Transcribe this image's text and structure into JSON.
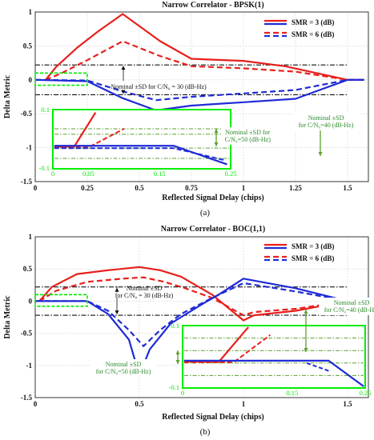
{
  "colors": {
    "red": "#e8201c",
    "blue": "#1f2bd6",
    "green": "#00ee00",
    "olive": "#5aa02c",
    "black": "#111111"
  },
  "chart_data": [
    {
      "panel_label": "(a)",
      "type": "line",
      "title": "Narrow Correlator - BPSK(1)",
      "xlabel": "Reflected Signal Delay (chips)",
      "ylabel": "Delta Metric",
      "xlim": [
        0,
        1.6
      ],
      "ylim": [
        -1.5,
        1
      ],
      "xticks": [
        "0",
        "0.25",
        "0.5",
        "0.75",
        "1",
        "1.25",
        "1.5"
      ],
      "yticks": [
        "1",
        "0.5",
        "0",
        "-0.5",
        "-1",
        "-1.5"
      ],
      "grid": true,
      "legend": {
        "position": "top-right",
        "entries": [
          {
            "label": "SMR = 3 (dB)",
            "style": "solid"
          },
          {
            "label": "SMR = 6 (dB)",
            "style": "dashed"
          }
        ]
      },
      "series": [
        {
          "name": "SMR = 3 (dB)",
          "color": "red",
          "style": "solid",
          "points": [
            [
              0.05,
              0
            ],
            [
              0.1,
              0.19
            ],
            [
              0.2,
              0.47
            ],
            [
              0.3,
              0.71
            ],
            [
              0.42,
              0.97
            ],
            [
              0.6,
              0.57
            ],
            [
              0.75,
              0.31
            ],
            [
              1.0,
              0.28
            ],
            [
              1.2,
              0.2
            ],
            [
              1.5,
              0
            ],
            [
              1.58,
              0
            ]
          ]
        },
        {
          "name": "SMR = 6 (dB)",
          "color": "red",
          "style": "dashed",
          "points": [
            [
              0.05,
              0
            ],
            [
              0.12,
              0.09
            ],
            [
              0.25,
              0.29
            ],
            [
              0.42,
              0.57
            ],
            [
              0.6,
              0.35
            ],
            [
              0.75,
              0.2
            ],
            [
              1.0,
              0.17
            ],
            [
              1.25,
              0.12
            ],
            [
              1.5,
              0
            ],
            [
              1.58,
              0
            ]
          ]
        },
        {
          "name": "SMR = 3 (dB)",
          "color": "blue",
          "style": "solid",
          "points": [
            [
              0,
              0
            ],
            [
              0.25,
              -0.02
            ],
            [
              0.42,
              -0.27
            ],
            [
              0.58,
              -0.45
            ],
            [
              0.75,
              -0.38
            ],
            [
              1.0,
              -0.33
            ],
            [
              1.25,
              -0.28
            ],
            [
              1.5,
              0
            ],
            [
              1.58,
              0
            ]
          ]
        },
        {
          "name": "SMR = 6 (dB)",
          "color": "blue",
          "style": "dashed",
          "points": [
            [
              0,
              0
            ],
            [
              0.25,
              -0.01
            ],
            [
              0.42,
              -0.17
            ],
            [
              0.58,
              -0.3
            ],
            [
              0.75,
              -0.25
            ],
            [
              1.0,
              -0.2
            ],
            [
              1.25,
              -0.15
            ],
            [
              1.5,
              0
            ],
            [
              1.58,
              0
            ]
          ]
        }
      ],
      "reference_lines": [
        {
          "y": 0.22,
          "color": "black",
          "style": "dashdot"
        },
        {
          "y": -0.22,
          "color": "black",
          "style": "dashdot"
        }
      ],
      "annotation": "Nominal ±SD  for C/N₀ = 30 (dB-Hz)",
      "inset": {
        "xlim": [
          0,
          0.25
        ],
        "ylim": [
          -0.1,
          0.1
        ],
        "ticks_x": [
          "0",
          "0.05",
          "0.15",
          "0.25"
        ],
        "ticks_y": [
          "0.1",
          "-0.1"
        ],
        "band_lines": [
          0.035,
          0.017,
          -0.03,
          -0.065
        ],
        "notes": [
          "Nominal ±SD for\nC/N₀=50 (dB-Hz)",
          "Nominal ±SD\nfor C/N₀=40 (dB-Hz)"
        ]
      }
    },
    {
      "panel_label": "(b)",
      "type": "line",
      "title": "Narrow Correlator - BOC(1,1)",
      "xlabel": "Reflected Signal Delay (chips)",
      "ylabel": "Delta Metric",
      "xlim": [
        0,
        1.6
      ],
      "ylim": [
        -1.5,
        1
      ],
      "xticks": [
        "0",
        "0.5",
        "1",
        "1.5"
      ],
      "yticks": [
        "1",
        "0.5",
        "0",
        "-0.5",
        "-1",
        "-1.5"
      ],
      "grid": true,
      "legend": {
        "position": "top-right",
        "entries": [
          {
            "label": "SMR = 3 (dB)",
            "style": "solid"
          },
          {
            "label": "SMR = 6 (dB)",
            "style": "dashed"
          }
        ]
      },
      "series": [
        {
          "name": "SMR = 3 (dB)",
          "color": "red",
          "style": "solid",
          "points": [
            [
              0.02,
              0
            ],
            [
              0.08,
              0.22
            ],
            [
              0.2,
              0.42
            ],
            [
              0.35,
              0.48
            ],
            [
              0.5,
              0.53
            ],
            [
              0.6,
              0.48
            ],
            [
              0.7,
              0.38
            ],
            [
              0.85,
              0.1
            ],
            [
              1.0,
              -0.3
            ],
            [
              1.05,
              -0.22
            ],
            [
              1.25,
              -0.15
            ],
            [
              1.5,
              0
            ],
            [
              1.58,
              0
            ]
          ]
        },
        {
          "name": "SMR = 6 (dB)",
          "color": "red",
          "style": "dashed",
          "points": [
            [
              0.02,
              0
            ],
            [
              0.1,
              0.16
            ],
            [
              0.25,
              0.3
            ],
            [
              0.42,
              0.35
            ],
            [
              0.52,
              0.37
            ],
            [
              0.62,
              0.3
            ],
            [
              0.72,
              0.2
            ],
            [
              0.85,
              0.05
            ],
            [
              1.0,
              -0.22
            ],
            [
              1.05,
              -0.17
            ],
            [
              1.25,
              -0.12
            ],
            [
              1.5,
              0
            ],
            [
              1.58,
              0
            ]
          ]
        },
        {
          "name": "SMR = 3 (dB)",
          "color": "blue",
          "style": "solid",
          "points": [
            [
              0,
              0
            ],
            [
              0.25,
              0
            ],
            [
              0.35,
              -0.2
            ],
            [
              0.45,
              -0.6
            ],
            [
              0.5,
              -1.15
            ],
            [
              0.55,
              -0.75
            ],
            [
              0.65,
              -0.35
            ],
            [
              0.8,
              -0.05
            ],
            [
              0.88,
              0.1
            ],
            [
              1.0,
              0.35
            ],
            [
              1.25,
              0.2
            ],
            [
              1.5,
              0
            ],
            [
              1.58,
              0
            ]
          ]
        },
        {
          "name": "SMR = 6 (dB)",
          "color": "blue",
          "style": "dashed",
          "points": [
            [
              0,
              0
            ],
            [
              0.25,
              0
            ],
            [
              0.35,
              -0.15
            ],
            [
              0.45,
              -0.45
            ],
            [
              0.52,
              -0.7
            ],
            [
              0.6,
              -0.45
            ],
            [
              0.7,
              -0.2
            ],
            [
              0.85,
              0.05
            ],
            [
              1.0,
              0.28
            ],
            [
              1.25,
              0.15
            ],
            [
              1.5,
              0
            ],
            [
              1.58,
              0
            ]
          ]
        }
      ],
      "reference_lines": [
        {
          "y": 0.22,
          "color": "black",
          "style": "dashdot"
        },
        {
          "y": -0.22,
          "color": "black",
          "style": "dashdot"
        }
      ],
      "annotation": "Nominal ±SD\nfor C/N₀ = 30 (dB-Hz)",
      "inset": {
        "xlim": [
          0,
          0.25
        ],
        "ylim": [
          -0.1,
          0.1
        ],
        "ticks_x": [
          "0",
          "0.15",
          "0.25"
        ],
        "ticks_y": [
          "0.1",
          "-0.1"
        ],
        "band_lines": [
          0.06,
          0.02,
          -0.02,
          -0.06
        ],
        "notes": [
          "Nominal ±SD\nfor C/N₀=50 (dB-Hz)",
          "Nominal ±SD\nfor C/N₀=40 (dB-Hz)"
        ]
      }
    }
  ]
}
